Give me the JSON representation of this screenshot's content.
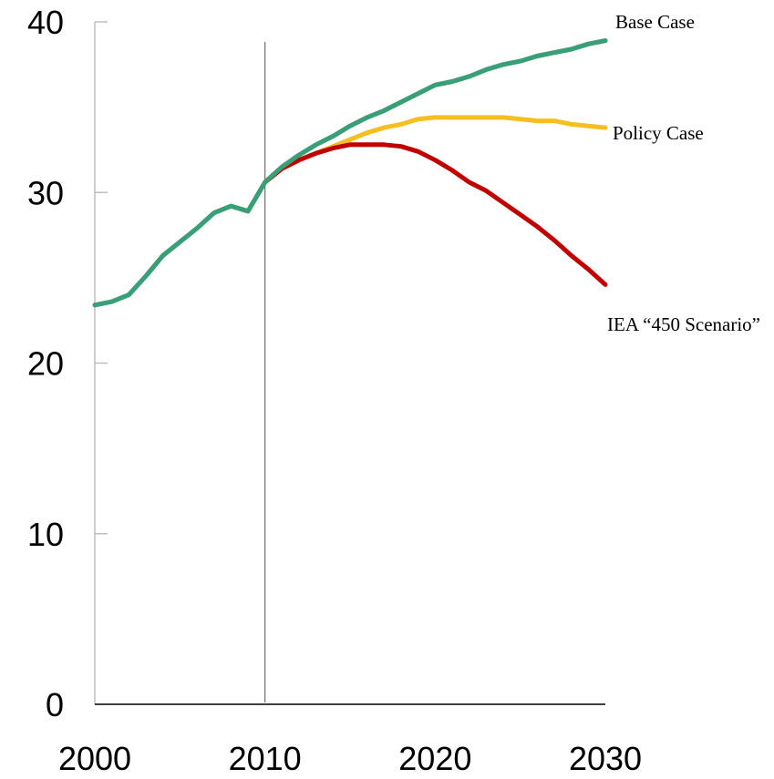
{
  "chart_data": {
    "type": "line",
    "title": "",
    "xlabel": "",
    "ylabel": "",
    "xlim": [
      2000,
      2030
    ],
    "ylim": [
      0,
      40
    ],
    "x_ticks": [
      2000,
      2010,
      2020,
      2030
    ],
    "y_ticks": [
      0,
      10,
      20,
      30,
      40
    ],
    "x_tick_labels": [
      "2000",
      "2010",
      "2020",
      "2030"
    ],
    "y_tick_labels": [
      "0",
      "10",
      "20",
      "30",
      "40"
    ],
    "grid": false,
    "legend": "inline labels at right",
    "reference_line_x": 2010,
    "series": [
      {
        "name": "Base Case",
        "color": "#3a9e77",
        "x": [
          2000,
          2001,
          2002,
          2003,
          2004,
          2005,
          2006,
          2007,
          2008,
          2009,
          2010,
          2011,
          2012,
          2013,
          2014,
          2015,
          2016,
          2017,
          2018,
          2019,
          2020,
          2021,
          2022,
          2023,
          2024,
          2025,
          2026,
          2027,
          2028,
          2029,
          2030
        ],
        "values": [
          23.4,
          23.6,
          24.0,
          25.1,
          26.3,
          27.1,
          27.9,
          28.8,
          29.2,
          28.9,
          30.6,
          31.5,
          32.2,
          32.8,
          33.3,
          33.9,
          34.4,
          34.8,
          35.3,
          35.8,
          36.3,
          36.5,
          36.8,
          37.2,
          37.5,
          37.7,
          38.0,
          38.2,
          38.4,
          38.7,
          38.9
        ]
      },
      {
        "name": "Policy Case",
        "color": "#f6be1e",
        "x": [
          2010,
          2011,
          2012,
          2013,
          2014,
          2015,
          2016,
          2017,
          2018,
          2019,
          2020,
          2021,
          2022,
          2023,
          2024,
          2025,
          2026,
          2027,
          2028,
          2029,
          2030
        ],
        "values": [
          30.6,
          31.4,
          31.9,
          32.3,
          32.7,
          33.1,
          33.5,
          33.8,
          34.0,
          34.3,
          34.4,
          34.4,
          34.4,
          34.4,
          34.4,
          34.3,
          34.2,
          34.2,
          34.0,
          33.9,
          33.8
        ]
      },
      {
        "name": "IEA “450 Scenario”",
        "color": "#c00000",
        "x": [
          2010,
          2011,
          2012,
          2013,
          2014,
          2015,
          2016,
          2017,
          2018,
          2019,
          2020,
          2021,
          2022,
          2023,
          2024,
          2025,
          2026,
          2027,
          2028,
          2029,
          2030
        ],
        "values": [
          30.6,
          31.4,
          31.9,
          32.3,
          32.6,
          32.8,
          32.8,
          32.8,
          32.7,
          32.4,
          31.9,
          31.3,
          30.6,
          30.1,
          29.4,
          28.7,
          28.0,
          27.2,
          26.3,
          25.5,
          24.6
        ]
      }
    ]
  }
}
